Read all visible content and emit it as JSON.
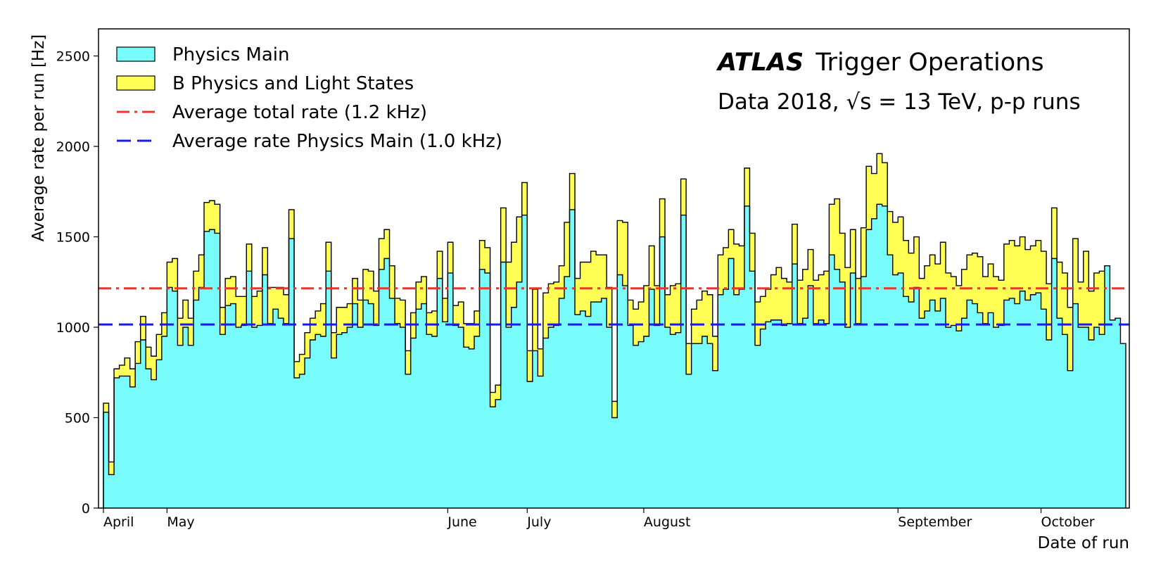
{
  "chart_data": {
    "type": "bar",
    "title": "Trigger Operations",
    "experiment": "ATLAS",
    "subtitle": "Data 2018, √s = 13 TeV, p-p runs",
    "xlabel": "Date of run",
    "ylabel": "Average rate per run [Hz]",
    "ylim": [
      0,
      2650
    ],
    "yticks": [
      "0",
      "500",
      "1000",
      "1500",
      "2000",
      "2500"
    ],
    "x_tick_labels": [
      "April",
      "May",
      "June",
      "July",
      "August",
      "September",
      "October"
    ],
    "x_tick_run_index": [
      0,
      12,
      65,
      80,
      102,
      150,
      177
    ],
    "grid": false,
    "legend_position": "top-left",
    "colors": {
      "physics_main": "#77fbfb",
      "b_physics": "#ffff55",
      "avg_total": "#e8382b",
      "avg_main": "#1a1aee",
      "edge": "#000000"
    },
    "reference_lines": [
      {
        "name": "Average total rate (1.2 kHz)",
        "value": 1215,
        "style": "dash-dot",
        "color": "#e8382b"
      },
      {
        "name": "Average rate Physics Main (1.0 kHz)",
        "value": 1015,
        "style": "dashed",
        "color": "#1a1aee"
      }
    ],
    "series": [
      {
        "name": "Physics Main",
        "values": [
          530,
          185,
          720,
          730,
          730,
          670,
          800,
          930,
          770,
          710,
          820,
          950,
          1220,
          1200,
          900,
          1000,
          900,
          1150,
          1220,
          1530,
          1540,
          1520,
          960,
          1120,
          1130,
          1000,
          1010,
          1310,
          1000,
          1010,
          1290,
          1020,
          1100,
          1050,
          1020,
          1490,
          720,
          740,
          830,
          930,
          960,
          950,
          1310,
          830,
          960,
          970,
          1000,
          1130,
          1000,
          1150,
          1130,
          1010,
          1320,
          1380,
          1160,
          1020,
          1000,
          740,
          940,
          1100,
          1130,
          960,
          950,
          1270,
          1030,
          1300,
          1010,
          1000,
          890,
          880,
          950,
          1320,
          1300,
          560,
          600,
          1360,
          1000,
          1110,
          1250,
          1620,
          700,
          870,
          730,
          940,
          1000,
          1010,
          1160,
          1280,
          1650,
          1070,
          1090,
          1060,
          1140,
          1140,
          1160,
          1000,
          500,
          1290,
          1230,
          1010,
          900,
          920,
          950,
          1210,
          1010,
          1500,
          1000,
          960,
          970,
          1620,
          740,
          910,
          910,
          950,
          910,
          760,
          1180,
          1210,
          1380,
          1180,
          1210,
          1670,
          1310,
          900,
          990,
          1030,
          1040,
          1040,
          1010,
          1020,
          1350,
          1020,
          1050,
          1230,
          1020,
          1040,
          1020,
          1400,
          1320,
          1250,
          1000,
          1300,
          1020,
          1280,
          1540,
          1600,
          1680,
          1670,
          1400,
          1290,
          1300,
          1170,
          1140,
          1220,
          1050,
          1090,
          1150,
          1090,
          1160,
          1000,
          1010,
          980,
          1050,
          1150,
          1130,
          1080,
          1020,
          1080,
          1000,
          1010,
          1150,
          1160,
          1130,
          1200,
          1150,
          1180,
          1190,
          1100,
          930,
          1380,
          1050,
          960,
          760,
          1130,
          1000,
          1000,
          930,
          1000,
          960,
          1340,
          1040,
          1050,
          910
        ]
      },
      {
        "name": "B Physics and Light States",
        "values": [
          50,
          70,
          50,
          60,
          100,
          100,
          120,
          130,
          120,
          130,
          140,
          130,
          140,
          180,
          150,
          150,
          150,
          160,
          180,
          160,
          160,
          160,
          150,
          150,
          150,
          170,
          160,
          150,
          170,
          190,
          150,
          200,
          120,
          170,
          160,
          160,
          90,
          110,
          140,
          120,
          130,
          180,
          160,
          140,
          150,
          140,
          130,
          140,
          150,
          170,
          180,
          190,
          170,
          160,
          180,
          140,
          150,
          130,
          140,
          150,
          150,
          120,
          140,
          150,
          130,
          170,
          110,
          140,
          130,
          140,
          140,
          160,
          140,
          80,
          80,
          300,
          360,
          360,
          360,
          180,
          170,
          340,
          150,
          250,
          240,
          240,
          180,
          300,
          200,
          200,
          270,
          300,
          280,
          260,
          240,
          220,
          90,
          300,
          350,
          140,
          200,
          220,
          280,
          240,
          220,
          210,
          180,
          270,
          270,
          200,
          170,
          190,
          240,
          250,
          270,
          190,
          220,
          230,
          160,
          280,
          240,
          210,
          210,
          240,
          180,
          180,
          250,
          290,
          260,
          230,
          220,
          240,
          270,
          200,
          240,
          250,
          290,
          280,
          390,
          270,
          330,
          240,
          250,
          270,
          350,
          250,
          280,
          240,
          240,
          290,
          310,
          310,
          270,
          280,
          220,
          250,
          250,
          260,
          310,
          300,
          270,
          250,
          270,
          250,
          280,
          310,
          260,
          270,
          280,
          250,
          310,
          320,
          320,
          300,
          280,
          270,
          290,
          320,
          310,
          280,
          310,
          340,
          350,
          360,
          250,
          420,
          270,
          300,
          350
        ]
      }
    ]
  },
  "legend": {
    "items": [
      {
        "label": "Physics Main",
        "type": "patch",
        "color": "#77fbfb"
      },
      {
        "label": "B Physics and Light States",
        "type": "patch",
        "color": "#ffff55"
      },
      {
        "label": "Average total rate (1.2 kHz)",
        "type": "dash-dot",
        "color": "#e8382b"
      },
      {
        "label": "Average rate Physics Main (1.0 kHz)",
        "type": "dashed",
        "color": "#1a1aee"
      }
    ]
  }
}
